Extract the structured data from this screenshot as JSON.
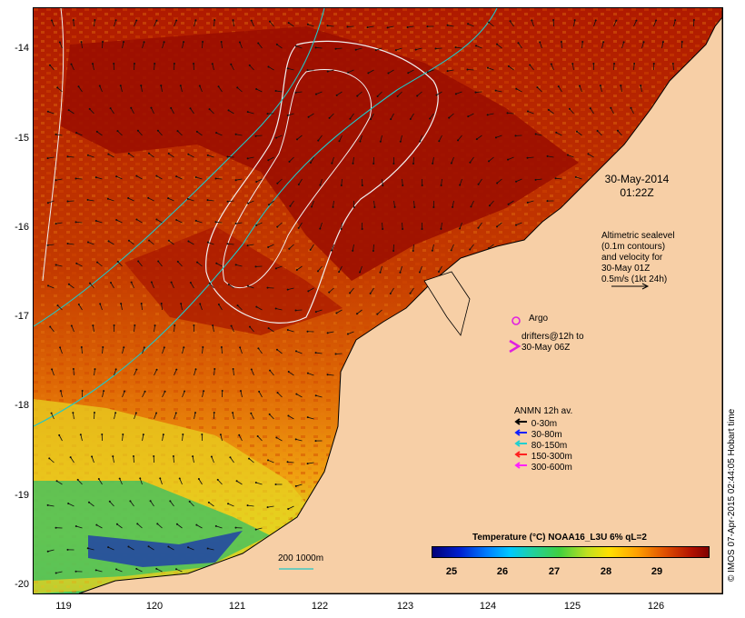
{
  "axes": {
    "lat_ticks": [
      "-14",
      "-15",
      "-16",
      "-17",
      "-18",
      "-19",
      "-20"
    ],
    "lon_ticks": [
      "119",
      "120",
      "121",
      "122",
      "123",
      "124",
      "125",
      "126"
    ]
  },
  "timestamp": {
    "line1": "30-May-2014",
    "line2": "01:22Z"
  },
  "altimetry": {
    "lines": [
      "Altimetric sealevel",
      "(0.1m contours)",
      "and velocity for",
      "30-May 01Z",
      "0.5m/s (1kt 24h)"
    ]
  },
  "argo": {
    "label": "Argo",
    "color": "#e020e0"
  },
  "drifters": {
    "line1": "drifters@12h to",
    "line2": "30-May 06Z",
    "color": "#e020e0"
  },
  "anmn": {
    "title": "ANMN 12h av.",
    "items": [
      {
        "label": "0-30m",
        "color": "#000000"
      },
      {
        "label": "30-80m",
        "color": "#1020ff"
      },
      {
        "label": "80-150m",
        "color": "#20d0d0"
      },
      {
        "label": "150-300m",
        "color": "#ff2020"
      },
      {
        "label": "300-600m",
        "color": "#ff20ff"
      }
    ]
  },
  "colorbar": {
    "title": "Temperature (°C) NOAA16_L3U 6% qL=2",
    "labels": [
      "25",
      "26",
      "27",
      "28",
      "29"
    ]
  },
  "scale_legend": {
    "label": "200  1000m",
    "color": "#20c8c8"
  },
  "credit": "© IMOS 07-Apr-2015 02:44:05 Hobart time",
  "colors": {
    "land": "#f7cfa6",
    "warm": "#9a0d00",
    "cool": "#f09010"
  }
}
